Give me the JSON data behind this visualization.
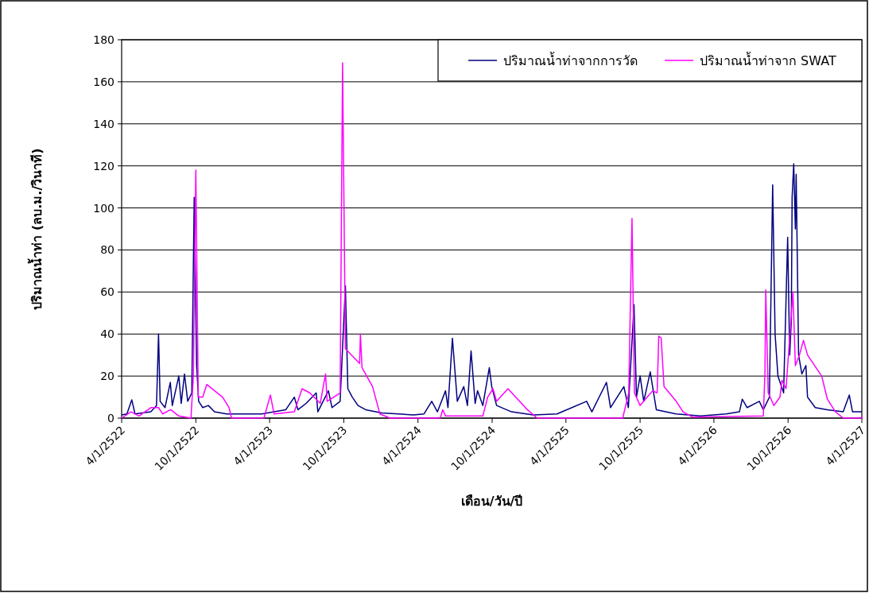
{
  "chart_data": {
    "type": "line",
    "xlabel": "เดือน/วัน/ปี",
    "ylabel": "ปริมาณน้ำท่า (ลบ.ม./วินาที)",
    "xlim": [
      "2522-04-01",
      "2527-04-01"
    ],
    "ylim": [
      0,
      180
    ],
    "yticks": [
      0,
      20,
      40,
      60,
      80,
      100,
      120,
      140,
      160,
      180
    ],
    "xticks": [
      {
        "value": "2522-04-01",
        "label": "4/1/2522"
      },
      {
        "value": "2522-10-01",
        "label": "10/1/2522"
      },
      {
        "value": "2523-04-01",
        "label": "4/1/2523"
      },
      {
        "value": "2523-10-01",
        "label": "10/1/2523"
      },
      {
        "value": "2524-04-01",
        "label": "4/1/2524"
      },
      {
        "value": "2524-10-01",
        "label": "10/1/2524"
      },
      {
        "value": "2525-04-01",
        "label": "4/1/2525"
      },
      {
        "value": "2525-10-01",
        "label": "10/1/2525"
      },
      {
        "value": "2526-04-01",
        "label": "4/1/2526"
      },
      {
        "value": "2526-10-01",
        "label": "10/1/2526"
      },
      {
        "value": "2527-04-01",
        "label": "4/1/2527"
      }
    ],
    "grid": "y",
    "legend": "top right",
    "marker": "none",
    "line_style": "solid",
    "series": [
      {
        "name": "ปริมาณน้ำท่าจากการวัด",
        "color": "#000080",
        "x": [
          "2522-04-01",
          "2522-04-14",
          "2522-04-26",
          "2522-05-04",
          "2522-06-12",
          "2522-06-26",
          "2522-07-01",
          "2522-07-05",
          "2522-07-17",
          "2522-07-30",
          "2522-08-04",
          "2522-08-20",
          "2522-08-26",
          "2522-09-03",
          "2522-09-11",
          "2522-09-21",
          "2522-09-27",
          "2522-10-03",
          "2522-10-08",
          "2522-10-18",
          "2522-11-01",
          "2522-11-16",
          "2522-12-16",
          "2523-03-13",
          "2523-04-12",
          "2523-05-11",
          "2523-06-01",
          "2523-06-10",
          "2523-06-30",
          "2523-07-25",
          "2523-07-29",
          "2523-08-24",
          "2523-09-02",
          "2523-09-22",
          "2523-10-05",
          "2523-10-11",
          "2523-10-22",
          "2523-11-05",
          "2523-11-24",
          "2524-01-03",
          "2524-03-21",
          "2524-04-16",
          "2524-05-05",
          "2524-05-19",
          "2524-06-08",
          "2524-06-14",
          "2524-06-25",
          "2524-07-07",
          "2524-07-23",
          "2524-08-01",
          "2524-08-10",
          "2524-08-20",
          "2524-08-26",
          "2524-09-08",
          "2524-09-24",
          "2524-09-30",
          "2524-10-12",
          "2524-11-18",
          "2525-01-10",
          "2525-03-10",
          "2525-05-22",
          "2525-06-04",
          "2525-07-10",
          "2525-07-20",
          "2525-08-22",
          "2525-09-02",
          "2525-09-16",
          "2525-09-22",
          "2525-10-01",
          "2525-10-10",
          "2525-10-26",
          "2525-11-10",
          "2525-12-29",
          "2526-02-27",
          "2526-05-01",
          "2526-06-03",
          "2526-06-10",
          "2526-06-22",
          "2526-07-22",
          "2526-08-01",
          "2526-08-16",
          "2526-08-24",
          "2526-08-30",
          "2526-09-06",
          "2526-09-20",
          "2526-09-30",
          "2526-10-05",
          "2526-10-09",
          "2526-10-11",
          "2526-10-15",
          "2526-10-19",
          "2526-10-21",
          "2526-10-27",
          "2526-11-04",
          "2526-11-14",
          "2526-11-18",
          "2526-12-07",
          "2527-01-06",
          "2527-02-14",
          "2527-03-01",
          "2527-03-09",
          "2527-04-01"
        ],
        "values": [
          1.5,
          2,
          8.7,
          2,
          3,
          6,
          40,
          8,
          5,
          17,
          6,
          20,
          7,
          21,
          8,
          12,
          105,
          25,
          8,
          5,
          6,
          3,
          2,
          2,
          3,
          4,
          10,
          4,
          7,
          12,
          3,
          13,
          5,
          8,
          63,
          14,
          10,
          6,
          4,
          2.5,
          1.5,
          2,
          8,
          3,
          13,
          5,
          38,
          8,
          15,
          6,
          32,
          7,
          13,
          6,
          24,
          15,
          6,
          3,
          1.5,
          2,
          8,
          3,
          17,
          5,
          15,
          5,
          54,
          10,
          20,
          8,
          22,
          4,
          2,
          1,
          2,
          3,
          9,
          5,
          8,
          4,
          10,
          111,
          40,
          20,
          12,
          86,
          30,
          46,
          105,
          121,
          90,
          116,
          30,
          21,
          25,
          10,
          5,
          4,
          3,
          11,
          3,
          3
        ]
      },
      {
        "name": "ปริมาณน้ำท่าจาก SWAT",
        "color": "#ff00ff",
        "x": [
          "2522-04-01",
          "2522-04-24",
          "2522-05-14",
          "2522-06-12",
          "2522-07-01",
          "2522-07-11",
          "2522-07-31",
          "2522-08-20",
          "2522-09-19",
          "2522-09-25",
          "2522-10-01",
          "2522-10-07",
          "2522-10-18",
          "2522-10-28",
          "2522-12-06",
          "2522-12-22",
          "2522-12-28",
          "2523-03-18",
          "2523-04-03",
          "2523-04-12",
          "2523-06-01",
          "2523-06-20",
          "2523-07-09",
          "2523-08-04",
          "2523-08-17",
          "2523-08-21",
          "2523-09-22",
          "2523-09-28",
          "2523-10-05",
          "2523-10-30",
          "2523-11-09",
          "2523-11-11",
          "2523-11-15",
          "2523-12-11",
          "2523-12-29",
          "2524-01-23",
          "2524-05-26",
          "2524-06-01",
          "2524-06-08",
          "2524-09-08",
          "2524-09-20",
          "2524-10-03",
          "2524-10-12",
          "2524-11-09",
          "2524-12-27",
          "2525-01-20",
          "2525-08-19",
          "2525-09-03",
          "2525-09-11",
          "2525-09-17",
          "2525-10-01",
          "2525-10-14",
          "2525-11-01",
          "2525-11-12",
          "2525-11-16",
          "2525-11-22",
          "2525-11-29",
          "2525-12-29",
          "2526-01-15",
          "2526-02-07",
          "2526-08-01",
          "2526-08-05",
          "2526-08-07",
          "2526-08-13",
          "2526-08-27",
          "2526-09-11",
          "2526-09-16",
          "2526-09-26",
          "2526-10-13",
          "2526-10-19",
          "2526-10-29",
          "2526-11-08",
          "2526-11-18",
          "2526-12-23",
          "2527-01-06",
          "2527-01-26",
          "2527-02-14",
          "2527-03-31",
          "2527-04-01"
        ],
        "values": [
          0,
          3,
          1,
          5,
          5,
          2,
          4,
          1,
          0,
          20,
          118,
          10,
          10,
          16,
          10,
          5,
          0,
          0,
          11,
          2,
          3,
          14,
          12,
          7,
          21,
          8,
          12,
          169,
          33,
          28,
          26,
          40,
          24,
          15,
          2,
          0,
          0,
          4,
          1,
          1,
          10,
          14,
          8,
          14,
          4,
          0,
          0,
          12,
          95,
          12,
          6,
          9,
          13,
          12,
          39,
          38,
          15,
          8,
          3,
          0.5,
          1,
          22,
          61,
          12,
          6,
          10,
          18,
          14,
          60,
          25,
          30,
          37,
          30,
          20,
          9,
          3,
          0,
          0,
          1
        ]
      }
    ]
  }
}
